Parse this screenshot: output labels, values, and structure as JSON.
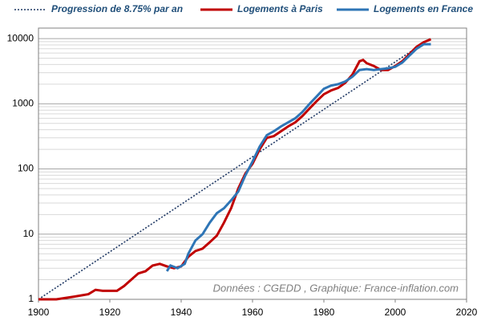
{
  "chart_data": {
    "type": "line",
    "yscale": "log",
    "grid": true,
    "minor_grid": true,
    "legend": "top",
    "xlim": [
      1900,
      2020
    ],
    "xticks": [
      1900,
      1920,
      1940,
      1960,
      1980,
      2000,
      2020
    ],
    "ylim": [
      1,
      14500
    ],
    "yticks": [
      1,
      10,
      100,
      1000,
      10000
    ],
    "annotation": "Données : CGEDD , Graphique: France-inflation.com",
    "series": [
      {
        "name": "Progression de 8.75% par an",
        "color": "#1f3864",
        "style": "dotted",
        "x": [
          1900,
          2010
        ],
        "values": [
          1,
          10170
        ]
      },
      {
        "name": "Logements à Paris",
        "color": "#c00000",
        "style": "solid",
        "x": [
          1900,
          1905,
          1910,
          1914,
          1916,
          1918,
          1922,
          1924,
          1926,
          1928,
          1930,
          1932,
          1934,
          1936,
          1938,
          1940,
          1942,
          1944,
          1946,
          1948,
          1950,
          1952,
          1954,
          1956,
          1958,
          1960,
          1962,
          1964,
          1966,
          1968,
          1970,
          1972,
          1974,
          1976,
          1978,
          1980,
          1982,
          1984,
          1986,
          1988,
          1990,
          1991,
          1992,
          1994,
          1996,
          1998,
          2000,
          2002,
          2004,
          2006,
          2008,
          2010
        ],
        "values": [
          1.0,
          1.0,
          1.1,
          1.2,
          1.4,
          1.35,
          1.35,
          1.6,
          2.0,
          2.5,
          2.7,
          3.3,
          3.5,
          3.2,
          3.0,
          3.2,
          4.5,
          5.5,
          6.0,
          7.5,
          9.5,
          15,
          25,
          50,
          85,
          120,
          200,
          300,
          320,
          380,
          450,
          520,
          650,
          850,
          1100,
          1400,
          1600,
          1750,
          2100,
          2800,
          4500,
          4700,
          4200,
          3800,
          3300,
          3300,
          3800,
          4500,
          5800,
          7500,
          8800,
          9800
        ]
      },
      {
        "name": "Logements en France",
        "color": "#2e75b6",
        "style": "solid",
        "x": [
          1936,
          1937,
          1939,
          1941,
          1942,
          1944,
          1946,
          1948,
          1950,
          1952,
          1954,
          1956,
          1958,
          1960,
          1962,
          1964,
          1966,
          1968,
          1970,
          1972,
          1974,
          1976,
          1978,
          1980,
          1982,
          1984,
          1986,
          1988,
          1990,
          1992,
          1994,
          1996,
          1998,
          2000,
          2002,
          2004,
          2006,
          2008,
          2010
        ],
        "values": [
          2.7,
          3.3,
          3.0,
          3.5,
          5,
          8,
          10,
          15,
          21,
          25,
          33,
          45,
          80,
          130,
          220,
          330,
          380,
          450,
          520,
          600,
          750,
          1000,
          1300,
          1700,
          1900,
          2000,
          2200,
          2600,
          3300,
          3400,
          3300,
          3400,
          3500,
          3700,
          4300,
          5500,
          7000,
          8200,
          8200
        ]
      }
    ]
  }
}
